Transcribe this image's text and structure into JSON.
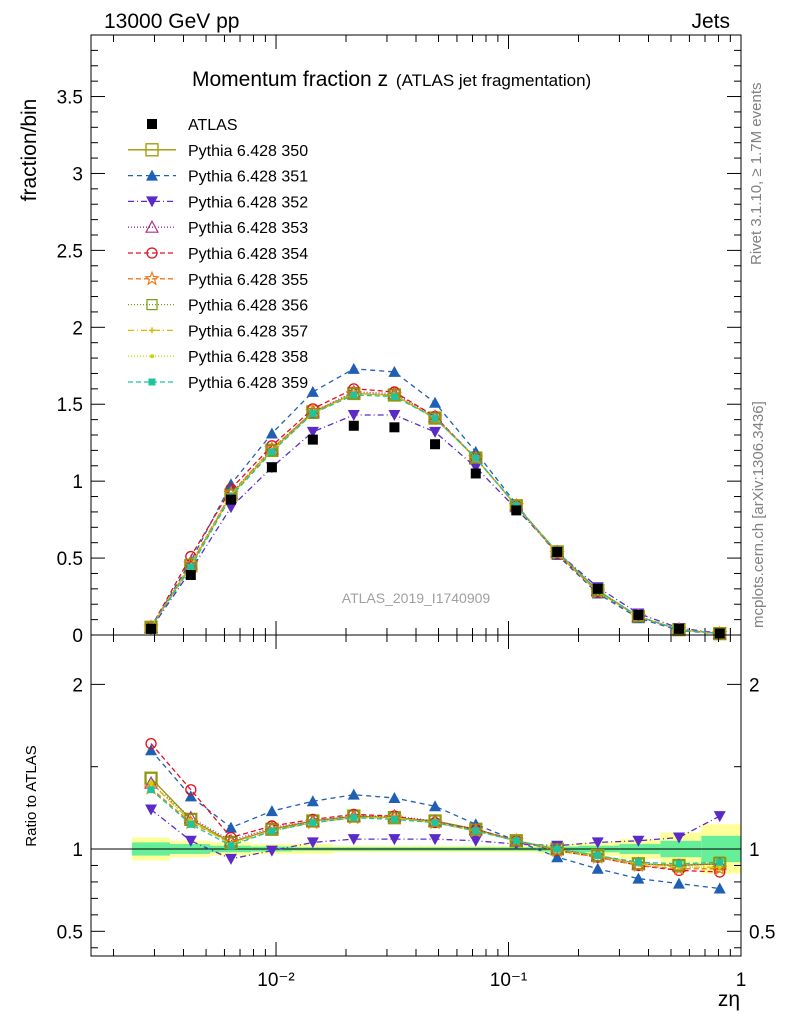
{
  "header": {
    "energy_label": "13000 GeV pp",
    "process_label": "Jets"
  },
  "side_labels": {
    "rivet": "Rivet 3.1.10, ≥ 1.7M events",
    "mcplots": "mcplots.cern.ch [arXiv:1306.3436]"
  },
  "chart_data": [
    {
      "type": "scatter",
      "panel": "main",
      "title_main": "Momentum fraction z",
      "title_sub": "(ATLAS jet fragmentation)",
      "ylabel": "fraction/bin",
      "xlabel": "zη",
      "watermark": "ATLAS_2019_I1740909",
      "x_scale": "log",
      "xlim": [
        0.0016,
        1.0
      ],
      "ylim": [
        0,
        3.9
      ],
      "x_ticks": [
        0.01,
        0.1,
        1
      ],
      "x_tick_labels": [
        "10⁻²",
        "10⁻¹",
        "1"
      ],
      "y_ticks": [
        0,
        0.5,
        1,
        1.5,
        2,
        2.5,
        3,
        3.5
      ],
      "y_tick_labels": [
        "0",
        "0.5",
        "1",
        "1.5",
        "2",
        "2.5",
        "3",
        "3.5"
      ],
      "x": [
        0.0029,
        0.0043,
        0.0064,
        0.0096,
        0.0144,
        0.0216,
        0.0323,
        0.0483,
        0.0723,
        0.108,
        0.162,
        0.242,
        0.362,
        0.541,
        0.81
      ],
      "series": [
        {
          "name": "ATLAS",
          "color": "#000000",
          "marker": "filled-square",
          "dash": "none",
          "values": [
            0.04,
            0.39,
            0.88,
            1.09,
            1.27,
            1.36,
            1.35,
            1.24,
            1.05,
            0.81,
            0.54,
            0.3,
            0.13,
            0.04,
            0.01
          ]
        },
        {
          "name": "Pythia 6.428 350",
          "color": "#9a9a00",
          "marker": "open-square-large",
          "dash": "solid",
          "values": [
            0.05,
            0.45,
            0.91,
            1.2,
            1.45,
            1.57,
            1.56,
            1.41,
            1.15,
            0.84,
            0.54,
            0.29,
            0.12,
            0.035,
            0.009
          ]
        },
        {
          "name": "Pythia 6.428 351",
          "color": "#1f5fb4",
          "marker": "filled-triangle-up",
          "dash": "5,4",
          "values": [
            0.05,
            0.48,
            0.98,
            1.31,
            1.58,
            1.73,
            1.71,
            1.51,
            1.19,
            0.85,
            0.52,
            0.27,
            0.11,
            0.03,
            0.008
          ]
        },
        {
          "name": "Pythia 6.428 352",
          "color": "#5a2bc8",
          "marker": "filled-triangle-down",
          "dash": "6,3,1,3",
          "values": [
            0.04,
            0.42,
            0.83,
            1.09,
            1.32,
            1.43,
            1.43,
            1.32,
            1.09,
            0.82,
            0.54,
            0.31,
            0.14,
            0.045,
            0.012
          ]
        },
        {
          "name": "Pythia 6.428 353",
          "color": "#b0308f",
          "marker": "open-triangle-up",
          "dash": "1,2",
          "values": [
            0.05,
            0.46,
            0.92,
            1.21,
            1.45,
            1.58,
            1.57,
            1.42,
            1.15,
            0.84,
            0.54,
            0.29,
            0.12,
            0.036,
            0.009
          ]
        },
        {
          "name": "Pythia 6.428 354",
          "color": "#e0101e",
          "marker": "open-circle",
          "dash": "5,3",
          "values": [
            0.05,
            0.51,
            0.95,
            1.23,
            1.47,
            1.6,
            1.58,
            1.42,
            1.15,
            0.84,
            0.53,
            0.28,
            0.12,
            0.035,
            0.009
          ]
        },
        {
          "name": "Pythia 6.428 355",
          "color": "#f07a1a",
          "marker": "open-star",
          "dash": "5,3",
          "values": [
            0.05,
            0.46,
            0.92,
            1.21,
            1.45,
            1.57,
            1.56,
            1.41,
            1.15,
            0.84,
            0.53,
            0.28,
            0.12,
            0.035,
            0.009
          ]
        },
        {
          "name": "Pythia 6.428 356",
          "color": "#7a9a10",
          "marker": "open-square",
          "dash": "1,2",
          "values": [
            0.05,
            0.46,
            0.91,
            1.2,
            1.44,
            1.57,
            1.56,
            1.41,
            1.15,
            0.84,
            0.54,
            0.29,
            0.12,
            0.036,
            0.009
          ]
        },
        {
          "name": "Pythia 6.428 357",
          "color": "#d8b800",
          "marker": "small-cross",
          "dash": "6,3,1,3",
          "values": [
            0.05,
            0.45,
            0.91,
            1.2,
            1.44,
            1.57,
            1.56,
            1.41,
            1.15,
            0.84,
            0.54,
            0.28,
            0.12,
            0.035,
            0.009
          ]
        },
        {
          "name": "Pythia 6.428 358",
          "color": "#c8d800",
          "marker": "small-dot",
          "dash": "1,2",
          "values": [
            0.05,
            0.45,
            0.91,
            1.2,
            1.44,
            1.57,
            1.56,
            1.41,
            1.15,
            0.84,
            0.54,
            0.28,
            0.12,
            0.035,
            0.009
          ]
        },
        {
          "name": "Pythia 6.428 359",
          "color": "#1fc49a",
          "marker": "filled-square-small",
          "dash": "5,3",
          "values": [
            0.05,
            0.44,
            0.9,
            1.19,
            1.44,
            1.56,
            1.55,
            1.41,
            1.15,
            0.84,
            0.54,
            0.29,
            0.12,
            0.036,
            0.009
          ]
        }
      ]
    },
    {
      "type": "scatter",
      "panel": "ratio",
      "ylabel": "Ratio to ATLAS",
      "x_scale": "log",
      "xlim": [
        0.0016,
        1.0
      ],
      "ylim": [
        0.35,
        2.3
      ],
      "y_ticks": [
        0.5,
        1,
        2
      ],
      "y_tick_labels": [
        "0.5",
        "1",
        "2"
      ],
      "uncertainty_band": {
        "x_edges": [
          0.0024,
          0.0035,
          0.0052,
          0.0078,
          0.0117,
          0.0176,
          0.0264,
          0.0396,
          0.0594,
          0.0891,
          0.1336,
          0.2,
          0.3,
          0.45,
          0.675,
          1.0
        ],
        "outer_low": [
          0.93,
          0.95,
          0.96,
          0.97,
          0.97,
          0.98,
          0.98,
          0.98,
          0.98,
          0.98,
          0.97,
          0.96,
          0.94,
          0.9,
          0.85
        ],
        "outer_high": [
          1.07,
          1.05,
          1.04,
          1.03,
          1.03,
          1.02,
          1.02,
          1.02,
          1.02,
          1.02,
          1.03,
          1.04,
          1.06,
          1.1,
          1.15
        ],
        "inner_low": [
          0.96,
          0.97,
          0.98,
          0.985,
          0.99,
          0.99,
          0.99,
          0.99,
          0.99,
          0.99,
          0.985,
          0.98,
          0.97,
          0.95,
          0.92
        ],
        "inner_high": [
          1.04,
          1.03,
          1.02,
          1.015,
          1.01,
          1.01,
          1.01,
          1.01,
          1.01,
          1.01,
          1.015,
          1.02,
          1.03,
          1.05,
          1.08
        ],
        "outer_color": "#ffff99",
        "inner_color": "#66ee99"
      },
      "series": [
        {
          "name": "Pythia 6.428 350",
          "values": [
            1.43,
            1.18,
            1.04,
            1.12,
            1.17,
            1.2,
            1.19,
            1.17,
            1.12,
            1.05,
            1.0,
            0.96,
            0.91,
            0.9,
            0.91
          ]
        },
        {
          "name": "Pythia 6.428 351",
          "values": [
            1.6,
            1.32,
            1.13,
            1.23,
            1.29,
            1.33,
            1.31,
            1.26,
            1.15,
            1.05,
            0.95,
            0.88,
            0.82,
            0.79,
            0.76
          ]
        },
        {
          "name": "Pythia 6.428 352",
          "values": [
            1.24,
            1.05,
            0.94,
            0.99,
            1.04,
            1.06,
            1.06,
            1.06,
            1.05,
            1.03,
            1.02,
            1.04,
            1.05,
            1.07,
            1.2
          ]
        },
        {
          "name": "Pythia 6.428 353",
          "values": [
            1.4,
            1.19,
            1.05,
            1.13,
            1.17,
            1.2,
            1.2,
            1.17,
            1.12,
            1.05,
            1.0,
            0.96,
            0.91,
            0.9,
            0.91
          ]
        },
        {
          "name": "Pythia 6.428 354",
          "values": [
            1.64,
            1.36,
            1.07,
            1.14,
            1.18,
            1.21,
            1.2,
            1.16,
            1.12,
            1.05,
            0.99,
            0.95,
            0.9,
            0.87,
            0.86
          ]
        },
        {
          "name": "Pythia 6.428 355",
          "values": [
            1.37,
            1.16,
            1.04,
            1.12,
            1.16,
            1.19,
            1.19,
            1.16,
            1.11,
            1.05,
            0.99,
            0.95,
            0.9,
            0.88,
            0.88
          ]
        },
        {
          "name": "Pythia 6.428 356",
          "values": [
            1.43,
            1.18,
            1.04,
            1.12,
            1.17,
            1.2,
            1.19,
            1.17,
            1.12,
            1.05,
            1.0,
            0.96,
            0.91,
            0.9,
            0.92
          ]
        },
        {
          "name": "Pythia 6.428 357",
          "values": [
            1.4,
            1.17,
            1.03,
            1.11,
            1.16,
            1.19,
            1.19,
            1.16,
            1.11,
            1.05,
            1.0,
            0.96,
            0.91,
            0.89,
            0.89
          ]
        },
        {
          "name": "Pythia 6.428 358",
          "values": [
            1.4,
            1.17,
            1.03,
            1.11,
            1.16,
            1.19,
            1.19,
            1.16,
            1.11,
            1.05,
            1.0,
            0.96,
            0.91,
            0.89,
            0.89
          ]
        },
        {
          "name": "Pythia 6.428 359",
          "values": [
            1.36,
            1.15,
            1.02,
            1.11,
            1.16,
            1.19,
            1.18,
            1.16,
            1.11,
            1.05,
            1.0,
            0.96,
            0.92,
            0.91,
            0.92
          ]
        }
      ]
    }
  ]
}
